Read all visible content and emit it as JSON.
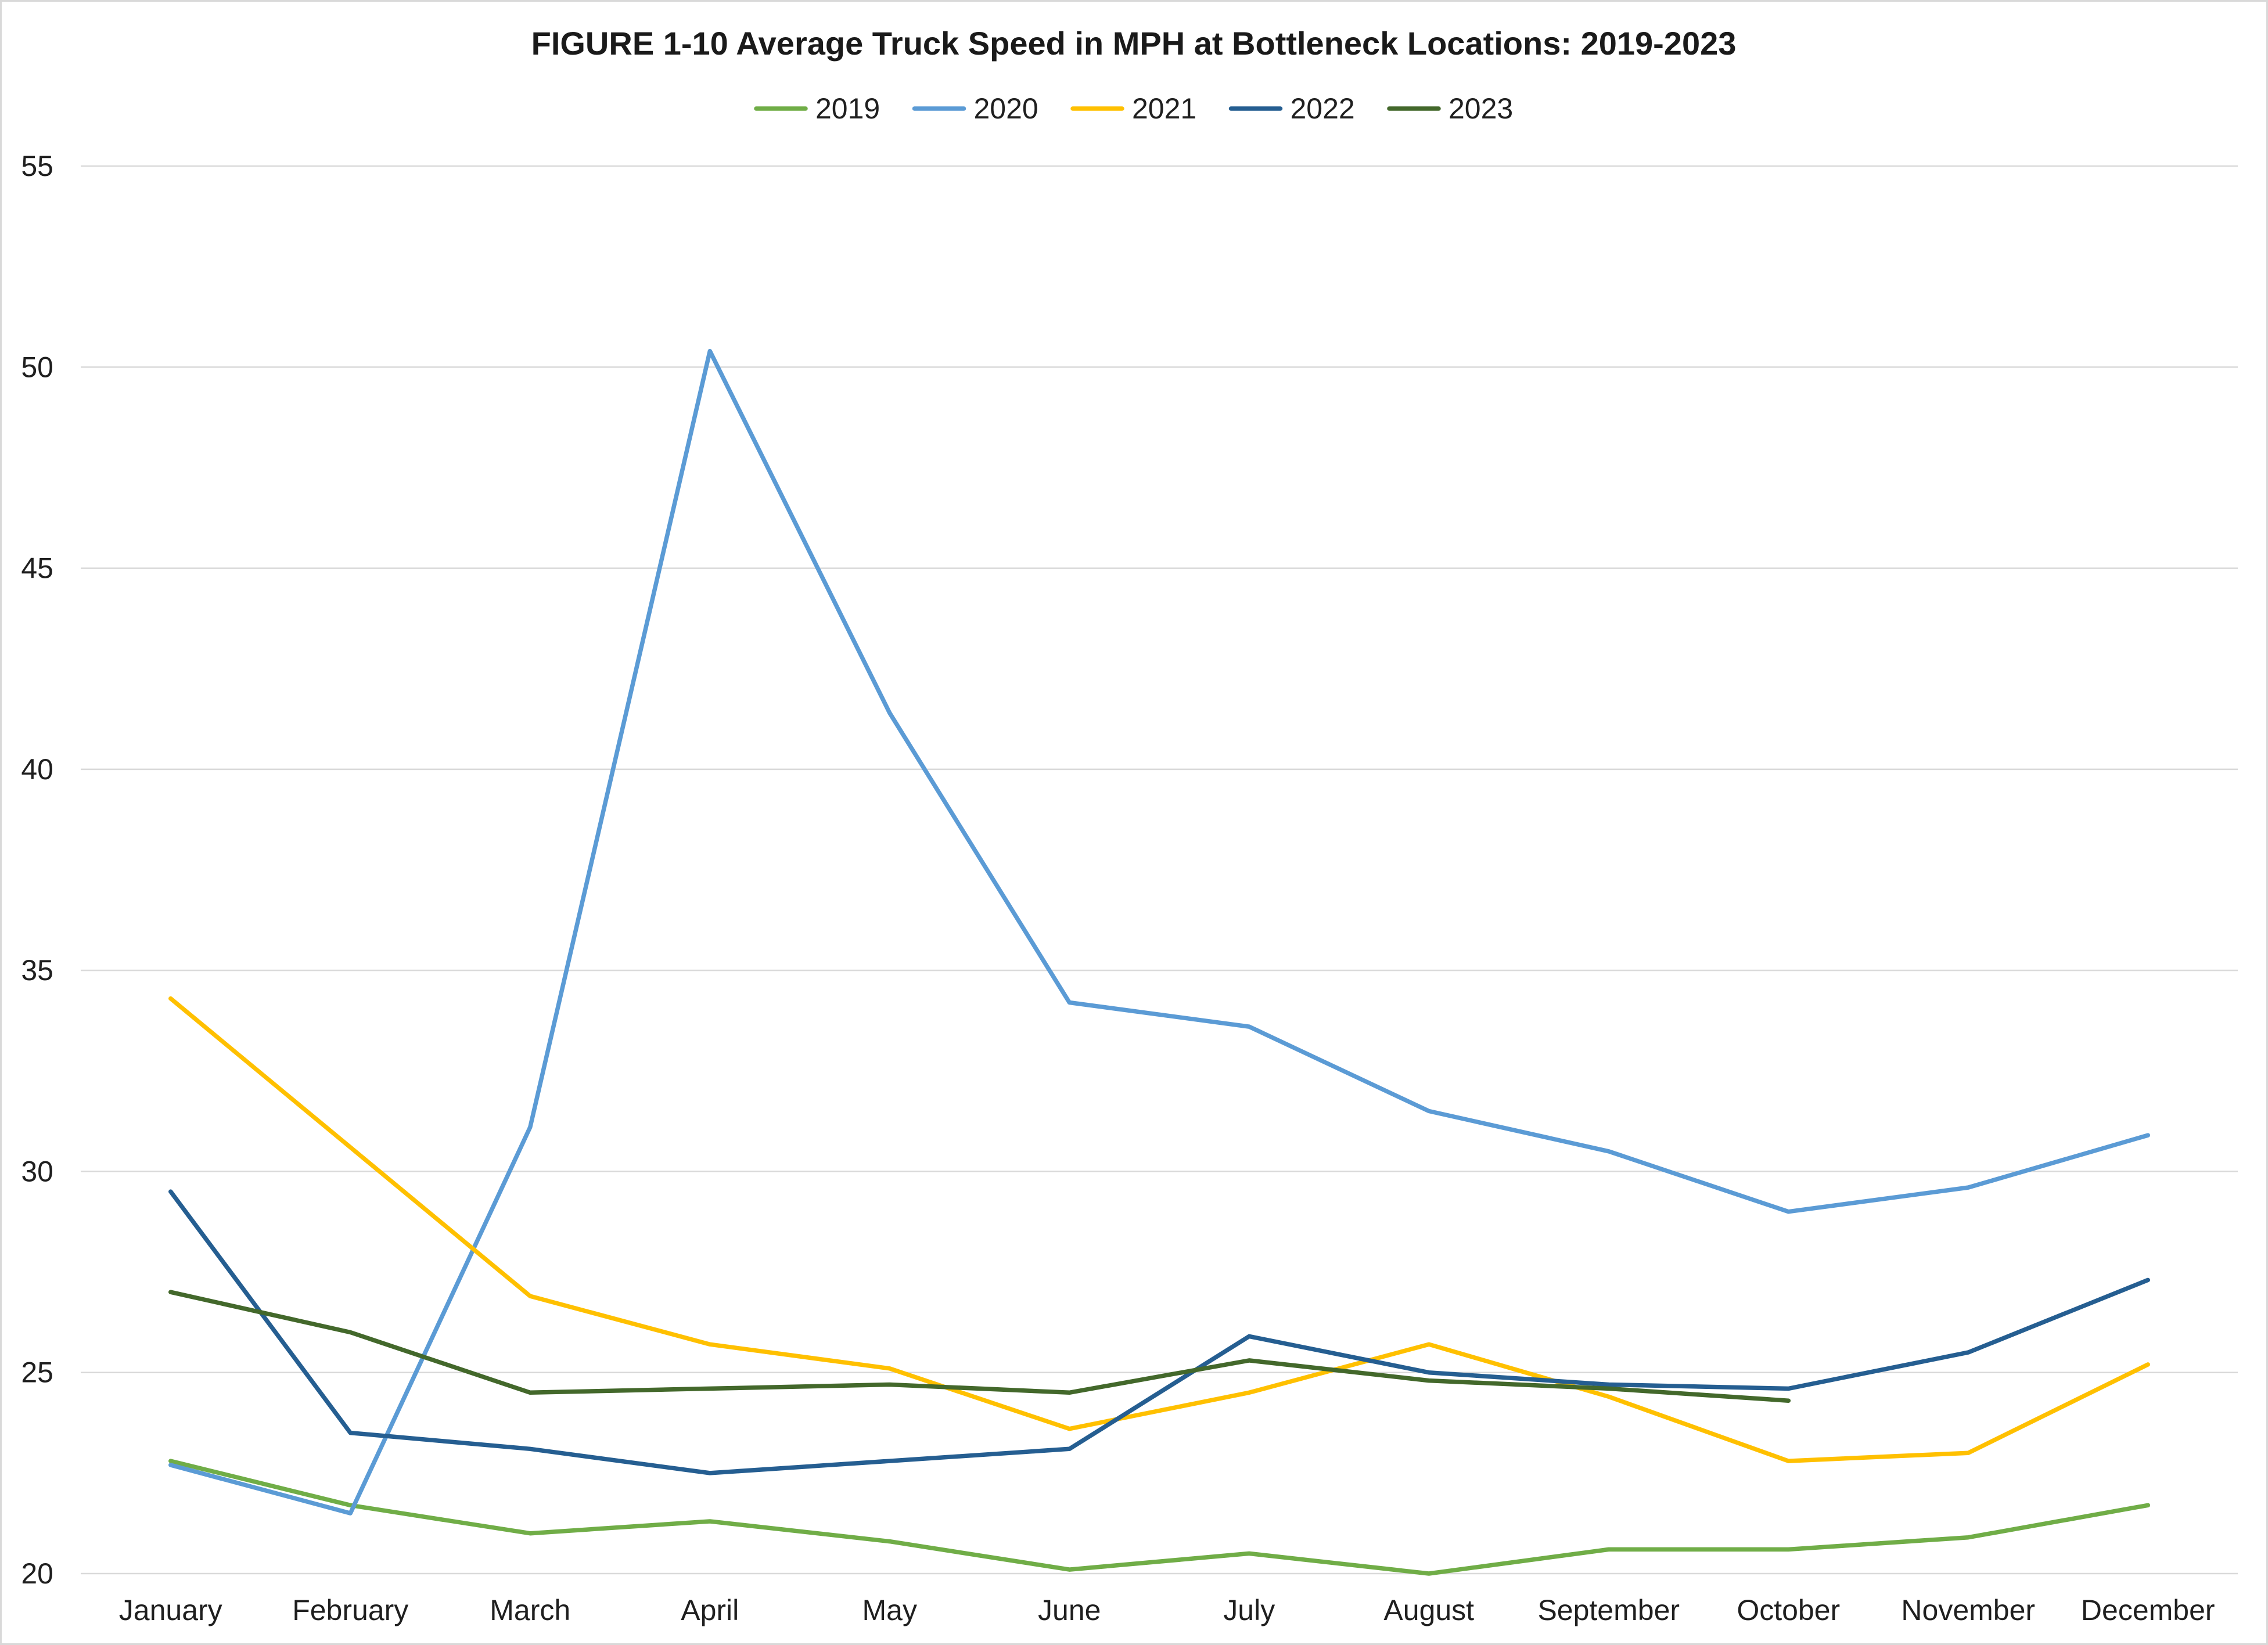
{
  "chart_data": {
    "type": "line",
    "title": "FIGURE 1-10 Average Truck Speed in MPH at Bottleneck Locations: 2019-2023",
    "xlabel": "",
    "ylabel": "",
    "categories": [
      "January",
      "February",
      "March",
      "April",
      "May",
      "June",
      "July",
      "August",
      "September",
      "October",
      "November",
      "December"
    ],
    "ylim": [
      20,
      55
    ],
    "yticks": [
      20,
      25,
      30,
      35,
      40,
      45,
      50,
      55
    ],
    "grid": true,
    "legend": "top-center",
    "series": [
      {
        "name": "2019",
        "color": "#70AD47",
        "values": [
          22.8,
          21.7,
          21.0,
          21.3,
          20.8,
          20.1,
          20.5,
          20.0,
          20.6,
          20.6,
          20.9,
          21.7
        ]
      },
      {
        "name": "2020",
        "color": "#5B9BD5",
        "values": [
          22.7,
          21.5,
          31.1,
          50.4,
          41.4,
          34.2,
          33.6,
          31.5,
          30.5,
          29.0,
          29.6,
          30.9
        ]
      },
      {
        "name": "2021",
        "color": "#FFC000",
        "values": [
          34.3,
          30.6,
          26.9,
          25.7,
          25.1,
          23.6,
          24.5,
          25.7,
          24.4,
          22.8,
          23.0,
          25.2
        ]
      },
      {
        "name": "2022",
        "color": "#255E91",
        "values": [
          29.5,
          23.5,
          23.1,
          22.5,
          22.8,
          23.1,
          25.9,
          25.0,
          24.7,
          24.6,
          25.5,
          27.3
        ]
      },
      {
        "name": "2023",
        "color": "#43682B",
        "values": [
          27.0,
          26.0,
          24.5,
          24.6,
          24.7,
          24.5,
          25.3,
          24.8,
          24.6,
          24.3,
          null,
          null
        ]
      }
    ]
  }
}
